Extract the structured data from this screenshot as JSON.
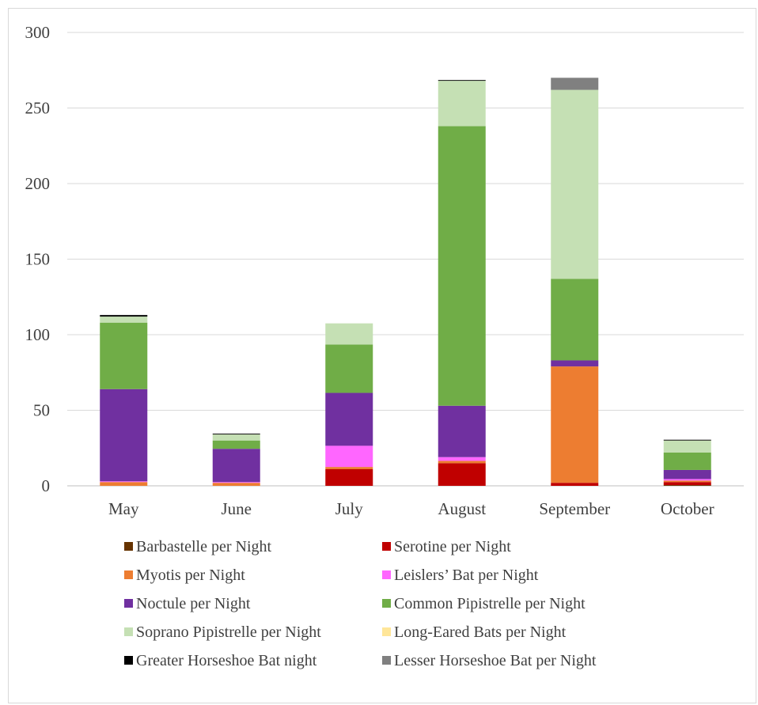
{
  "chart_data": {
    "type": "bar",
    "stacked": true,
    "categories": [
      "May",
      "June",
      "July",
      "August",
      "September",
      "October"
    ],
    "ylim": [
      0,
      300
    ],
    "yticks": [
      0,
      50,
      100,
      150,
      200,
      250,
      300
    ],
    "grid": true,
    "legend_position": "bottom",
    "series": [
      {
        "name": "Barbastelle per Night",
        "color": "#663300",
        "values": [
          0,
          0,
          0,
          0,
          0,
          0.5
        ]
      },
      {
        "name": "Serotine per Night",
        "color": "#c00000",
        "values": [
          0,
          0,
          11,
          15,
          2,
          2
        ]
      },
      {
        "name": "Myotis per Night",
        "color": "#ed7d31",
        "values": [
          2.5,
          2,
          1.5,
          1.5,
          77,
          1
        ]
      },
      {
        "name": "Leislers’ Bat per Night",
        "color": "#ff66ff",
        "values": [
          0.5,
          0.5,
          14,
          2.5,
          0,
          1
        ]
      },
      {
        "name": "Noctule per Night",
        "color": "#7030a0",
        "values": [
          61,
          22,
          35,
          34,
          4,
          6
        ]
      },
      {
        "name": "Common Pipistrelle per Night",
        "color": "#70ad47",
        "values": [
          44,
          5.5,
          32,
          185,
          54,
          11.5
        ]
      },
      {
        "name": "Soprano Pipistrelle per Night",
        "color": "#c5e0b4",
        "values": [
          4,
          4,
          14,
          30,
          125,
          8
        ]
      },
      {
        "name": "Long-Eared Bats per Night",
        "color": "#ffe699",
        "values": [
          0,
          0,
          0,
          0,
          0,
          0
        ]
      },
      {
        "name": "Greater Horseshoe Bat night",
        "color": "#000000",
        "values": [
          1,
          0.5,
          0,
          0.5,
          0,
          0.5
        ]
      },
      {
        "name": "Lesser Horseshoe Bat per Night",
        "color": "#808080",
        "values": [
          0,
          0,
          0,
          0,
          8,
          0
        ]
      }
    ]
  }
}
